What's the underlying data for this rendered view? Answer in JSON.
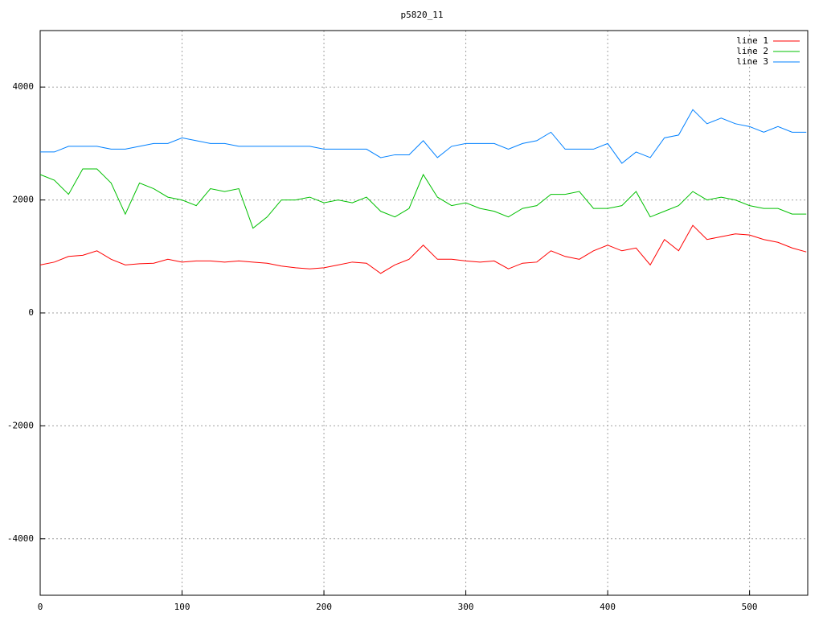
{
  "chart_data": {
    "type": "line",
    "title": "p5820_11",
    "x": [
      0,
      10,
      20,
      30,
      40,
      50,
      60,
      70,
      80,
      90,
      100,
      110,
      120,
      130,
      140,
      150,
      160,
      170,
      180,
      190,
      200,
      210,
      220,
      230,
      240,
      250,
      260,
      270,
      280,
      290,
      300,
      310,
      320,
      330,
      340,
      350,
      360,
      370,
      380,
      390,
      400,
      410,
      420,
      430,
      440,
      450,
      460,
      470,
      480,
      490,
      500,
      510,
      520,
      530,
      540
    ],
    "series": [
      {
        "name": "line 1",
        "color": "#ff0000",
        "values": [
          850,
          900,
          1000,
          1020,
          1100,
          950,
          850,
          870,
          880,
          950,
          900,
          920,
          920,
          900,
          920,
          900,
          880,
          830,
          800,
          780,
          800,
          850,
          900,
          880,
          700,
          850,
          950,
          1200,
          950,
          950,
          920,
          900,
          920,
          780,
          880,
          900,
          1100,
          1000,
          950,
          1100,
          1200,
          1100,
          1150,
          850,
          1300,
          1100,
          1550,
          1300,
          1350,
          1400,
          1380,
          1300,
          1250,
          1150,
          1080
        ]
      },
      {
        "name": "line 2",
        "color": "#00c000",
        "values": [
          2450,
          2350,
          2100,
          2550,
          2550,
          2300,
          1750,
          2300,
          2200,
          2050,
          2000,
          1900,
          2200,
          2150,
          2200,
          1500,
          1700,
          2000,
          2000,
          2050,
          1950,
          2000,
          1950,
          2050,
          1800,
          1700,
          1850,
          2450,
          2050,
          1900,
          1950,
          1850,
          1800,
          1700,
          1850,
          1900,
          2100,
          2100,
          2150,
          1850,
          1850,
          1900,
          2150,
          1700,
          1800,
          1900,
          2150,
          2000,
          2050,
          2000,
          1900,
          1850,
          1850,
          1750,
          1750
        ]
      },
      {
        "name": "line 3",
        "color": "#0080ff",
        "values": [
          2850,
          2850,
          2950,
          2950,
          2950,
          2900,
          2900,
          2950,
          3000,
          3000,
          3100,
          3050,
          3000,
          3000,
          2950,
          2950,
          2950,
          2950,
          2950,
          2950,
          2900,
          2900,
          2900,
          2900,
          2750,
          2800,
          2800,
          3050,
          2750,
          2950,
          3000,
          3000,
          3000,
          2900,
          3000,
          3050,
          3200,
          2900,
          2900,
          2900,
          3000,
          2650,
          2850,
          2750,
          3100,
          3150,
          3600,
          3350,
          3450,
          3350,
          3300,
          3200,
          3300,
          3200,
          3200
        ]
      }
    ],
    "xlim": [
      0,
      541
    ],
    "ylim": [
      -5000,
      5000
    ],
    "xticks": [
      0,
      100,
      200,
      300,
      400,
      500
    ],
    "yticks": [
      -4000,
      -2000,
      0,
      2000,
      4000
    ],
    "grid": true,
    "legend": "top-right"
  }
}
